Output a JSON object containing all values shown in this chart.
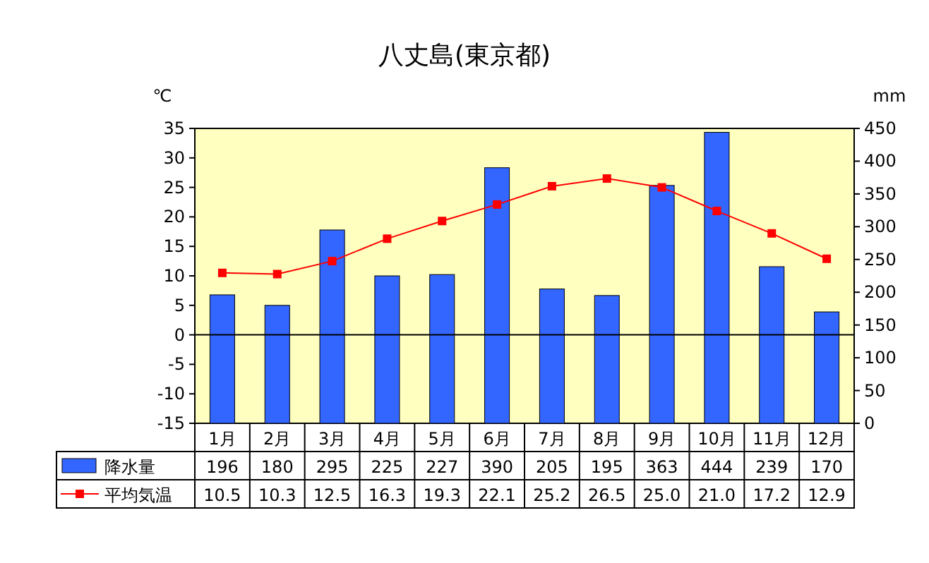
{
  "chart_data": {
    "type": "bar",
    "title": "八丈島(東京都)",
    "ylabel": "℃",
    "y2label": "mm",
    "categories": [
      "1月",
      "2月",
      "3月",
      "4月",
      "5月",
      "6月",
      "7月",
      "8月",
      "9月",
      "10月",
      "11月",
      "12月"
    ],
    "series": [
      {
        "name": "降水量",
        "axis": "y2",
        "color": "#3366ff",
        "values": [
          196,
          180,
          295,
          225,
          227,
          390,
          205,
          195,
          363,
          444,
          239,
          170
        ],
        "value_labels": [
          "196",
          "180",
          "295",
          "225",
          "227",
          "390",
          "205",
          "195",
          "363",
          "444",
          "239",
          "170"
        ]
      },
      {
        "name": "平均気温",
        "type": "line",
        "color": "#ff0000",
        "marker": "square",
        "values": [
          10.5,
          10.3,
          12.5,
          16.3,
          19.3,
          22.1,
          25.2,
          26.5,
          25.0,
          21.0,
          17.2,
          12.9
        ],
        "value_labels": [
          "10.5",
          "10.3",
          "12.5",
          "16.3",
          "19.3",
          "22.1",
          "25.2",
          "26.5",
          "25.0",
          "21.0",
          "17.2",
          "12.9"
        ]
      }
    ],
    "ylim": [
      -15,
      35
    ],
    "yticks": [
      -15,
      -10,
      -5,
      0,
      5,
      10,
      15,
      20,
      25,
      30,
      35
    ],
    "y2lim": [
      0,
      450
    ],
    "y2ticks": [
      0,
      50,
      100,
      150,
      200,
      250,
      300,
      350,
      400,
      450
    ],
    "ref_lines": [
      {
        "axis": "y",
        "value": 0,
        "color": "#000000"
      }
    ],
    "legend": "bottom",
    "grid": false
  }
}
